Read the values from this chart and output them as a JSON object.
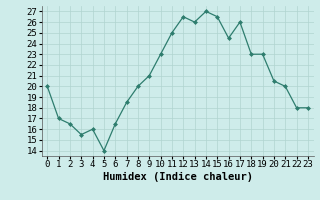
{
  "x": [
    0,
    1,
    2,
    3,
    4,
    5,
    6,
    7,
    8,
    9,
    10,
    11,
    12,
    13,
    14,
    15,
    16,
    17,
    18,
    19,
    20,
    21,
    22,
    23
  ],
  "y": [
    20,
    17,
    16.5,
    15.5,
    16,
    14,
    16.5,
    18.5,
    20,
    21,
    23,
    25,
    26.5,
    26,
    27,
    26.5,
    24.5,
    26,
    23,
    23,
    20.5,
    20,
    18,
    18
  ],
  "line_color": "#2e7d6e",
  "marker": "D",
  "marker_size": 2,
  "bg_color": "#ceecea",
  "grid_color": "#b0d4d0",
  "xlabel": "Humidex (Indice chaleur)",
  "xlim": [
    -0.5,
    23.5
  ],
  "ylim": [
    13.5,
    27.5
  ],
  "yticks": [
    14,
    15,
    16,
    17,
    18,
    19,
    20,
    21,
    22,
    23,
    24,
    25,
    26,
    27
  ],
  "xlabel_fontsize": 7.5,
  "tick_fontsize": 6.5,
  "line_width": 0.9
}
